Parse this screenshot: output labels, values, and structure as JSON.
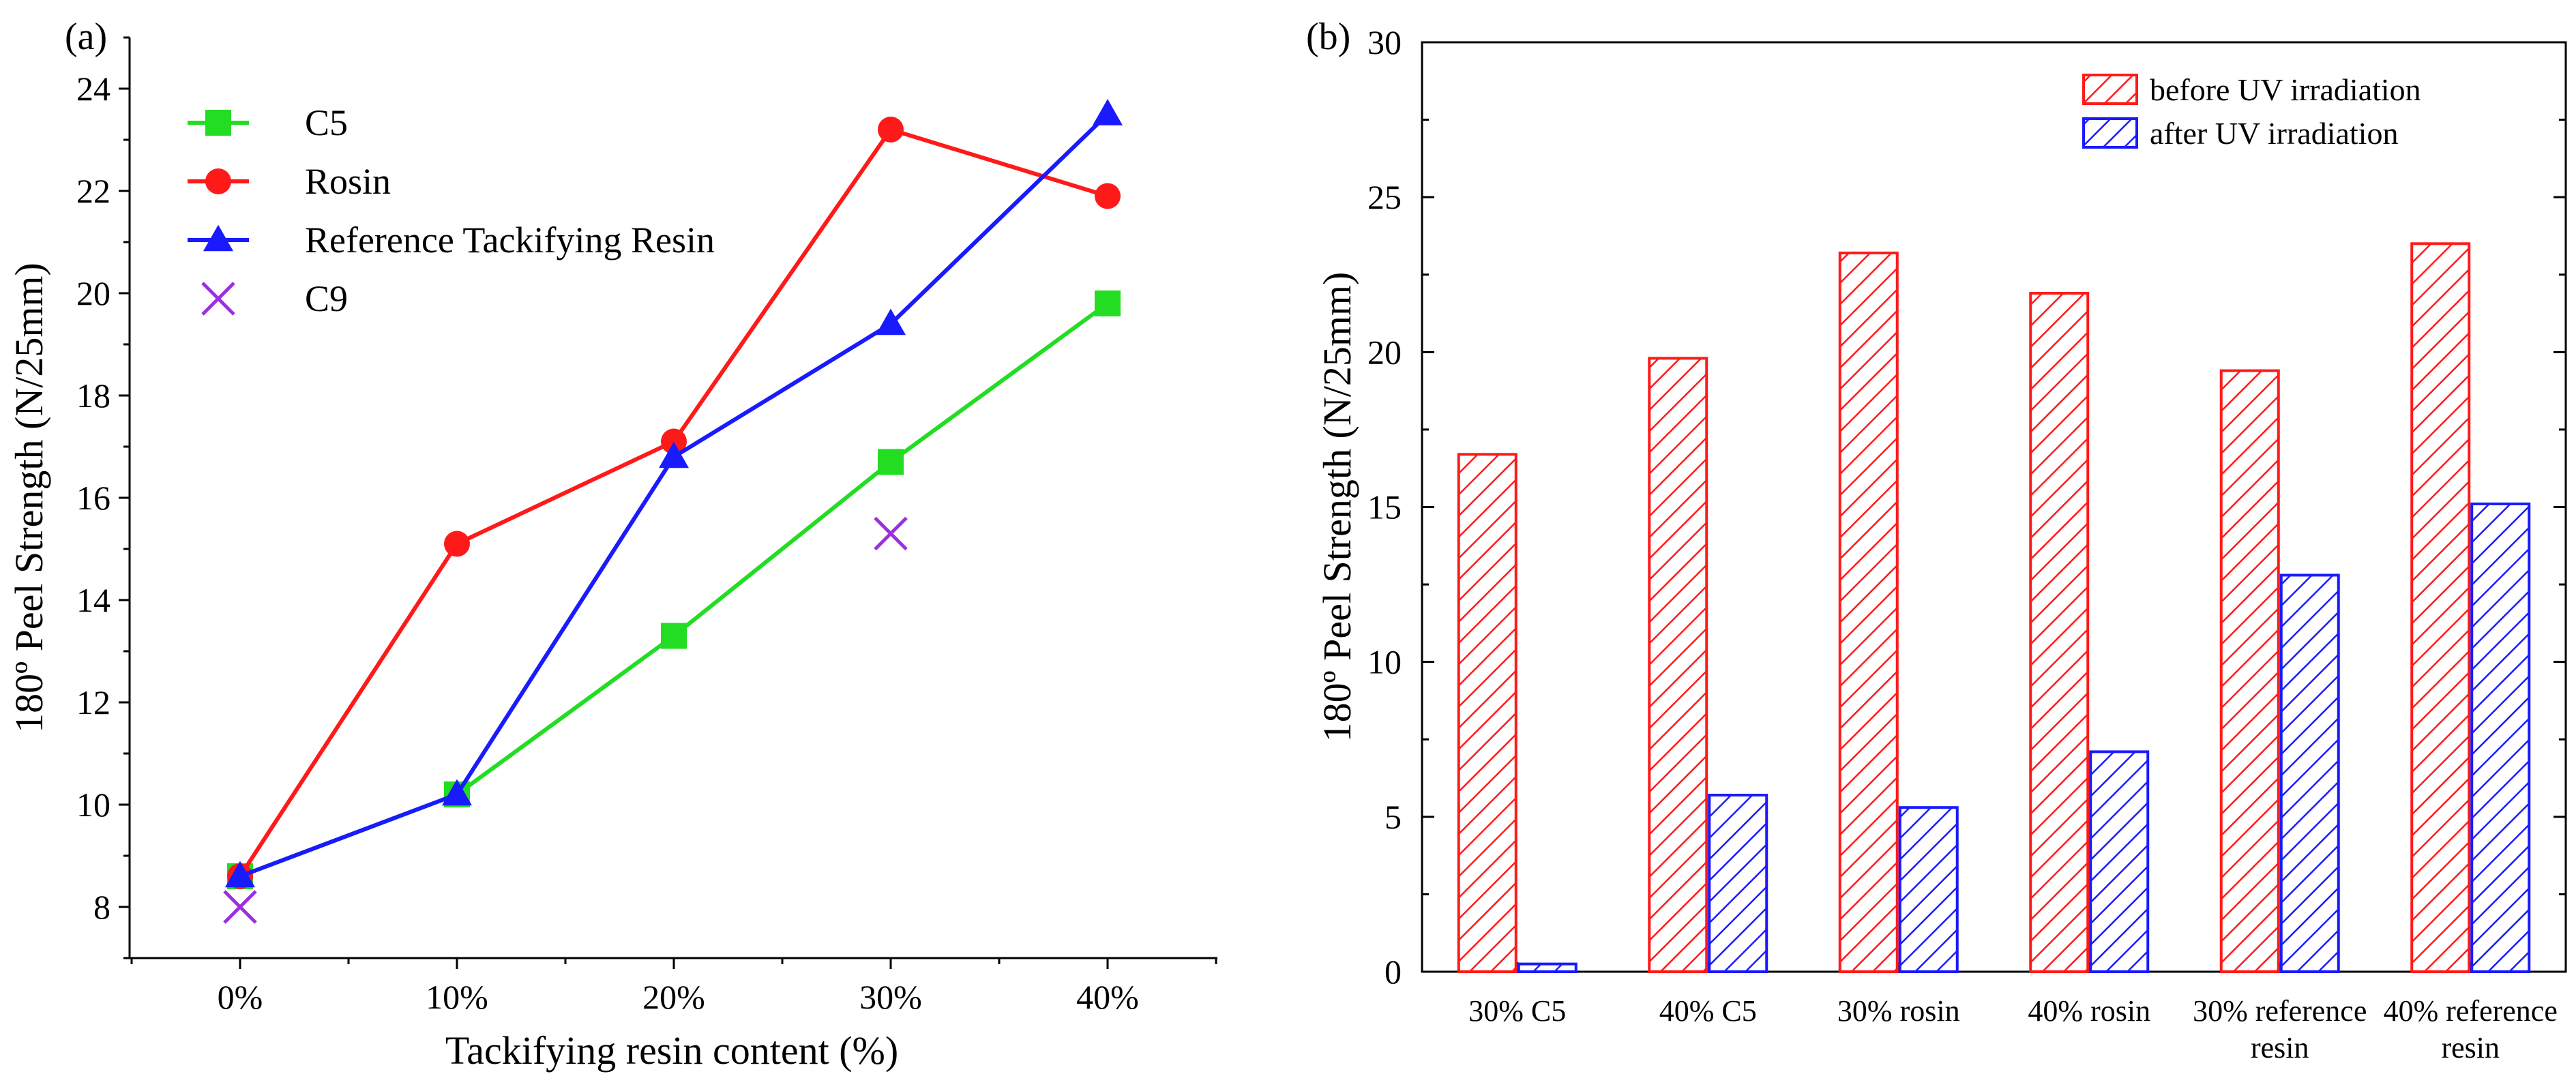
{
  "chart_data": [
    {
      "panel": "(a)",
      "type": "line",
      "xlabel": "Tackifying resin content (%)",
      "ylabel": "180º Peel Strength (N/25mm)",
      "categories": [
        "0%",
        "10%",
        "20%",
        "30%",
        "40%"
      ],
      "ylim": [
        7,
        25
      ],
      "yticks": [
        8,
        10,
        12,
        14,
        16,
        18,
        20,
        22,
        24
      ],
      "legend": "top-left",
      "grid": false,
      "series": [
        {
          "name": "C5",
          "marker": "square",
          "color": "#22dd22",
          "values": [
            8.6,
            10.2,
            13.3,
            16.7,
            19.8
          ]
        },
        {
          "name": "Rosin",
          "marker": "circle",
          "color": "#ff1a1a",
          "values": [
            8.6,
            15.1,
            17.1,
            23.2,
            21.9
          ]
        },
        {
          "name": "Reference Tackifying Resin",
          "marker": "triangle",
          "color": "#1a1aff",
          "values": [
            8.6,
            10.2,
            16.8,
            19.4,
            23.5
          ]
        },
        {
          "name": "C9",
          "marker": "x",
          "color": "#9b30e0",
          "points": [
            [
              0,
              8.0
            ],
            [
              3,
              15.3
            ]
          ]
        }
      ]
    },
    {
      "panel": "(b)",
      "type": "bar",
      "ylabel": "180º Peel Strength (N/25mm)",
      "xlabel": "",
      "categories": [
        [
          "30% C5"
        ],
        [
          "40% C5"
        ],
        [
          "30% rosin"
        ],
        [
          "40% rosin"
        ],
        [
          "30% reference",
          "resin"
        ],
        [
          "40% reference",
          "resin"
        ]
      ],
      "ylim": [
        0,
        30
      ],
      "yticks": [
        0,
        5,
        10,
        15,
        20,
        25,
        30
      ],
      "legend": "top-right",
      "grid": false,
      "series": [
        {
          "name": "before UV irradiation",
          "color": "#ff1a1a",
          "pattern": "hatched",
          "values": [
            16.7,
            19.8,
            23.2,
            21.9,
            19.4,
            23.5
          ]
        },
        {
          "name": "after UV irradiation",
          "color": "#1a1aff",
          "pattern": "hatched",
          "values": [
            0.25,
            5.7,
            5.3,
            7.1,
            12.8,
            15.1
          ]
        }
      ]
    }
  ]
}
